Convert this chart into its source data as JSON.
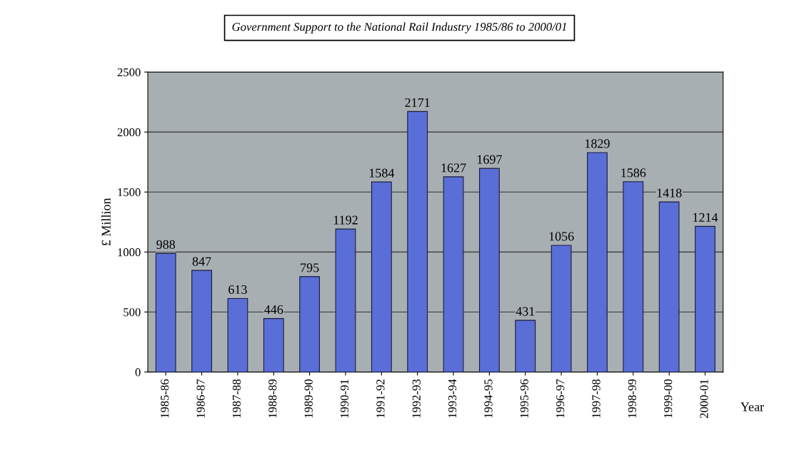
{
  "chart_data": {
    "type": "bar",
    "title": "Government Support to the National Rail Industry 1985/86 to 2000/01",
    "ylabel": "£ Million",
    "xlabel": "Year",
    "categories": [
      "1985-86",
      "1986-87",
      "1987-88",
      "1988-89",
      "1989-90",
      "1990-91",
      "1991-92",
      "1992-93",
      "1993-94",
      "1994-95",
      "1995-96",
      "1996-97",
      "1997-98",
      "1998-99",
      "1999-00",
      "2000-01"
    ],
    "values": [
      988,
      847,
      613,
      446,
      795,
      1192,
      1584,
      2171,
      1627,
      1697,
      431,
      1056,
      1829,
      1586,
      1418,
      1214
    ],
    "color": "#5a6ed8",
    "ylim": [
      0,
      2500
    ],
    "yticks": [
      0,
      500,
      1000,
      1500,
      2000,
      2500
    ],
    "grid": "y",
    "data_labels": true,
    "legend": false
  }
}
